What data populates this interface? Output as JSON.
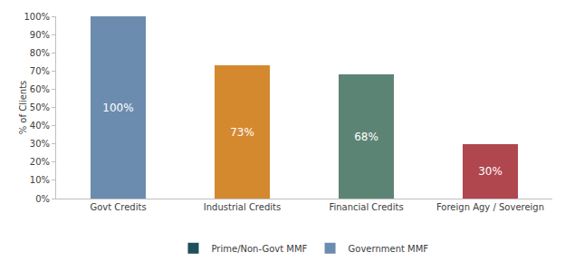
{
  "chart_data": {
    "type": "bar",
    "categories": [
      "Govt Credits",
      "Industrial Credits",
      "Financial Credits",
      "Foreign Agy / Sovereign"
    ],
    "series": [
      {
        "name": "Prime/Non-Govt MMF",
        "color": "#1d4f5c",
        "values": [
          0,
          0,
          0,
          0
        ]
      },
      {
        "name": "Government MMF",
        "color": "#6b8cae",
        "colors": [
          "#6b8cae",
          "#d4892f",
          "#5c8474",
          "#b0464e"
        ],
        "values": [
          100,
          73,
          68,
          30
        ],
        "data_labels": true,
        "value_labels": [
          "100%",
          "73%",
          "68%",
          "30%"
        ]
      }
    ],
    "y_label": "% of Clients",
    "ylim": [
      0,
      100
    ],
    "yticks": [
      {
        "value": 0,
        "label": "0%"
      },
      {
        "value": 10,
        "label": "10%"
      },
      {
        "value": 20,
        "label": "20%"
      },
      {
        "value": 30,
        "label": "30%"
      },
      {
        "value": 40,
        "label": "40%"
      },
      {
        "value": 50,
        "label": "50%"
      },
      {
        "value": 60,
        "label": "60%"
      },
      {
        "value": 70,
        "label": "70%"
      },
      {
        "value": 80,
        "label": "80%"
      },
      {
        "value": 90,
        "label": "90%"
      },
      {
        "value": 100,
        "label": "100%"
      }
    ],
    "stacked": true,
    "grid": false,
    "legend": "bottom"
  }
}
